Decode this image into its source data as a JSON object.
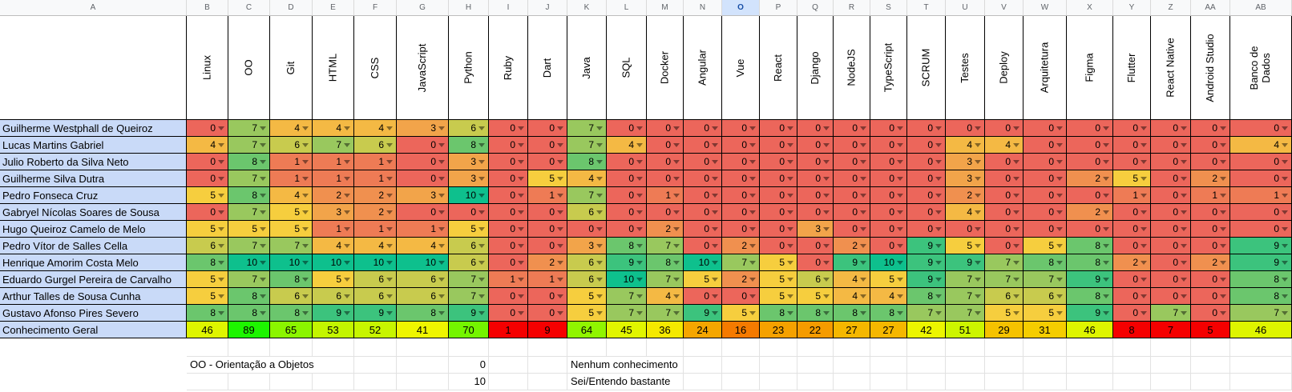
{
  "sheet": {
    "column_letters": [
      "A",
      "B",
      "C",
      "D",
      "E",
      "F",
      "G",
      "H",
      "I",
      "J",
      "K",
      "L",
      "M",
      "N",
      "O",
      "P",
      "Q",
      "R",
      "S",
      "T",
      "U",
      "V",
      "W",
      "X",
      "Y",
      "Z",
      "AA",
      "AB"
    ],
    "selected_column_letter": "O",
    "skill_headers": [
      "Linux",
      "OO",
      "Git",
      "HTML",
      "CSS",
      "JavaScript",
      "Python",
      "Ruby",
      "Dart",
      "Java",
      "SQL",
      "Docker",
      "Angular",
      "Vue",
      "React",
      "Django",
      "NodeJS",
      "TypeScript",
      "SCRUM",
      "Testes",
      "Deploy",
      "Arquitetura",
      "Figma",
      "Flutter",
      "React Native",
      "Android Studio",
      "Banco de Dados"
    ],
    "rows": [
      {
        "name": "Guilherme Westphall de Queiroz",
        "values": [
          0,
          7,
          4,
          4,
          4,
          3,
          6,
          0,
          0,
          7,
          0,
          0,
          0,
          0,
          0,
          0,
          0,
          0,
          0,
          0,
          0,
          0,
          0,
          0,
          0,
          0,
          0
        ]
      },
      {
        "name": "Lucas Martins Gabriel",
        "values": [
          4,
          7,
          6,
          7,
          6,
          0,
          8,
          0,
          0,
          7,
          4,
          0,
          0,
          0,
          0,
          0,
          0,
          0,
          0,
          4,
          4,
          0,
          0,
          0,
          0,
          0,
          4
        ]
      },
      {
        "name": "Julio Roberto da Silva Neto",
        "values": [
          0,
          8,
          1,
          1,
          1,
          0,
          3,
          0,
          0,
          8,
          0,
          0,
          0,
          0,
          0,
          0,
          0,
          0,
          0,
          3,
          0,
          0,
          0,
          0,
          0,
          0,
          0
        ]
      },
      {
        "name": "Guilherme Silva Dutra",
        "values": [
          0,
          7,
          1,
          1,
          1,
          0,
          3,
          0,
          5,
          4,
          0,
          0,
          0,
          0,
          0,
          0,
          0,
          0,
          0,
          3,
          0,
          0,
          2,
          5,
          0,
          2,
          0
        ]
      },
      {
        "name": "Pedro Fonseca Cruz",
        "values": [
          5,
          8,
          4,
          2,
          2,
          3,
          10,
          0,
          1,
          7,
          0,
          1,
          0,
          0,
          0,
          0,
          0,
          0,
          0,
          2,
          0,
          0,
          0,
          1,
          0,
          1,
          1
        ]
      },
      {
        "name": "Gabryel Nícolas Soares de Sousa",
        "values": [
          0,
          7,
          5,
          3,
          2,
          0,
          0,
          0,
          0,
          6,
          0,
          0,
          0,
          0,
          0,
          0,
          0,
          0,
          0,
          4,
          0,
          0,
          2,
          0,
          0,
          0,
          0
        ]
      },
      {
        "name": "Hugo Queiroz Camelo de Melo",
        "values": [
          5,
          5,
          5,
          1,
          1,
          1,
          5,
          0,
          0,
          0,
          0,
          2,
          0,
          0,
          0,
          3,
          0,
          0,
          0,
          0,
          0,
          0,
          0,
          0,
          0,
          0,
          0
        ]
      },
      {
        "name": "Pedro Vítor de Salles Cella",
        "values": [
          6,
          7,
          7,
          4,
          4,
          4,
          6,
          0,
          0,
          3,
          8,
          7,
          0,
          2,
          0,
          0,
          2,
          0,
          9,
          5,
          0,
          5,
          8,
          0,
          0,
          0,
          9
        ]
      },
      {
        "name": "Henrique Amorim Costa Melo",
        "values": [
          8,
          10,
          10,
          10,
          10,
          10,
          6,
          0,
          2,
          6,
          9,
          8,
          10,
          7,
          5,
          0,
          9,
          10,
          9,
          9,
          7,
          8,
          8,
          2,
          0,
          2,
          9
        ]
      },
      {
        "name": "Eduardo Gurgel Pereira de Carvalho",
        "values": [
          5,
          7,
          8,
          5,
          6,
          6,
          7,
          1,
          1,
          6,
          10,
          7,
          5,
          2,
          5,
          6,
          4,
          5,
          9,
          7,
          7,
          7,
          9,
          0,
          0,
          0,
          8
        ]
      },
      {
        "name": "Arthur Talles de Sousa Cunha",
        "values": [
          5,
          8,
          6,
          6,
          6,
          6,
          7,
          0,
          0,
          5,
          7,
          4,
          0,
          0,
          5,
          5,
          4,
          4,
          8,
          7,
          6,
          6,
          8,
          0,
          0,
          0,
          8
        ]
      },
      {
        "name": "Gustavo Afonso Pires Severo",
        "values": [
          8,
          8,
          8,
          9,
          9,
          8,
          9,
          0,
          0,
          5,
          7,
          7,
          9,
          5,
          8,
          8,
          8,
          8,
          7,
          7,
          5,
          5,
          9,
          0,
          7,
          0,
          7
        ]
      }
    ],
    "summary_row": {
      "name": "Conhecimento Geral",
      "values": [
        46,
        89,
        65,
        53,
        52,
        41,
        70,
        1,
        9,
        64,
        45,
        36,
        24,
        16,
        23,
        22,
        27,
        27,
        42,
        51,
        29,
        31,
        46,
        8,
        7,
        5,
        46
      ]
    },
    "footer": {
      "note": "OO - Orientação a Objetos",
      "scale_min_value": "0",
      "scale_min_label": "Nenhum conhecimento",
      "scale_max_value": "10",
      "scale_max_label": "Sei/Entendo bastante"
    },
    "colors": {
      "name_cell_bg": "#c9daf8",
      "selected_header_bg": "#d2e3fc",
      "skill_scale_min": "#ec665b",
      "skill_scale_mid": "#f6ce3e",
      "skill_scale_max": "#0ec08d",
      "summary_scale_min": "#f50000",
      "summary_scale_max": "#10e600"
    }
  }
}
